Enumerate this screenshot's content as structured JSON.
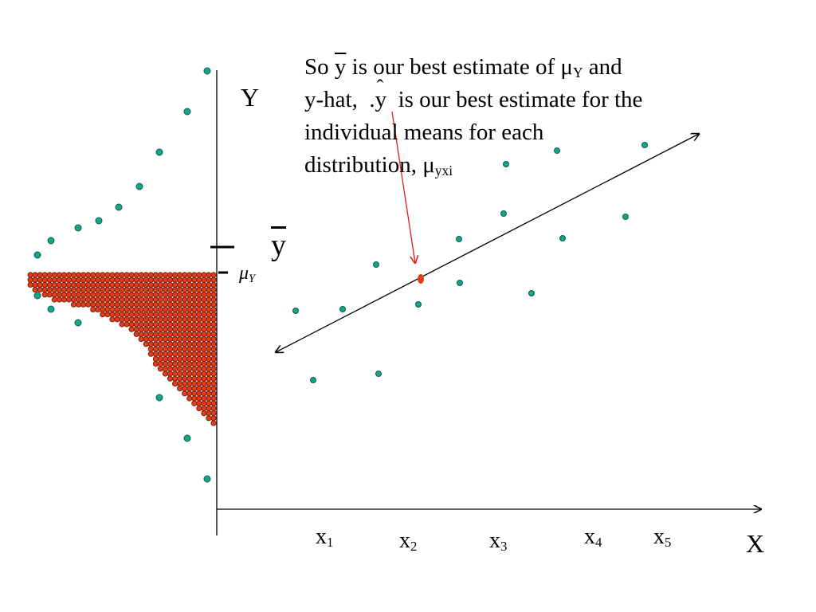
{
  "caption": {
    "line1_so": "So",
    "ybar": "y",
    "line1_mid": "is our best estimate of",
    "mu": "μ",
    "mu_sub": "Y",
    "line1_end": "and",
    "line2_start": "y-hat,",
    "yhat_dot": ".",
    "yhat": "y",
    "yhat_mark": "ˆ",
    "line2_end": "is our best estimate for the",
    "line3": "individual means for each",
    "line4": "distribution,",
    "mu2": "μ",
    "mu2_sub": "yxi"
  },
  "axes": {
    "y_label": "Y",
    "x_label": "X",
    "ybar_label": "y",
    "mu_label": "μ",
    "mu_label_sub": "Y"
  },
  "x_ticks": [
    {
      "name": "x",
      "sub": "1"
    },
    {
      "name": "x",
      "sub": "2"
    },
    {
      "name": "x",
      "sub": "3"
    },
    {
      "name": "x",
      "sub": "4"
    },
    {
      "name": "x",
      "sub": "5"
    }
  ],
  "colors": {
    "teal": "#17a58a",
    "teal_stroke": "#0b5e4e",
    "red": "#e33e1c",
    "red_stroke": "#7a1e0c",
    "axis": "#000000",
    "pointer": "#e01f1f"
  }
}
